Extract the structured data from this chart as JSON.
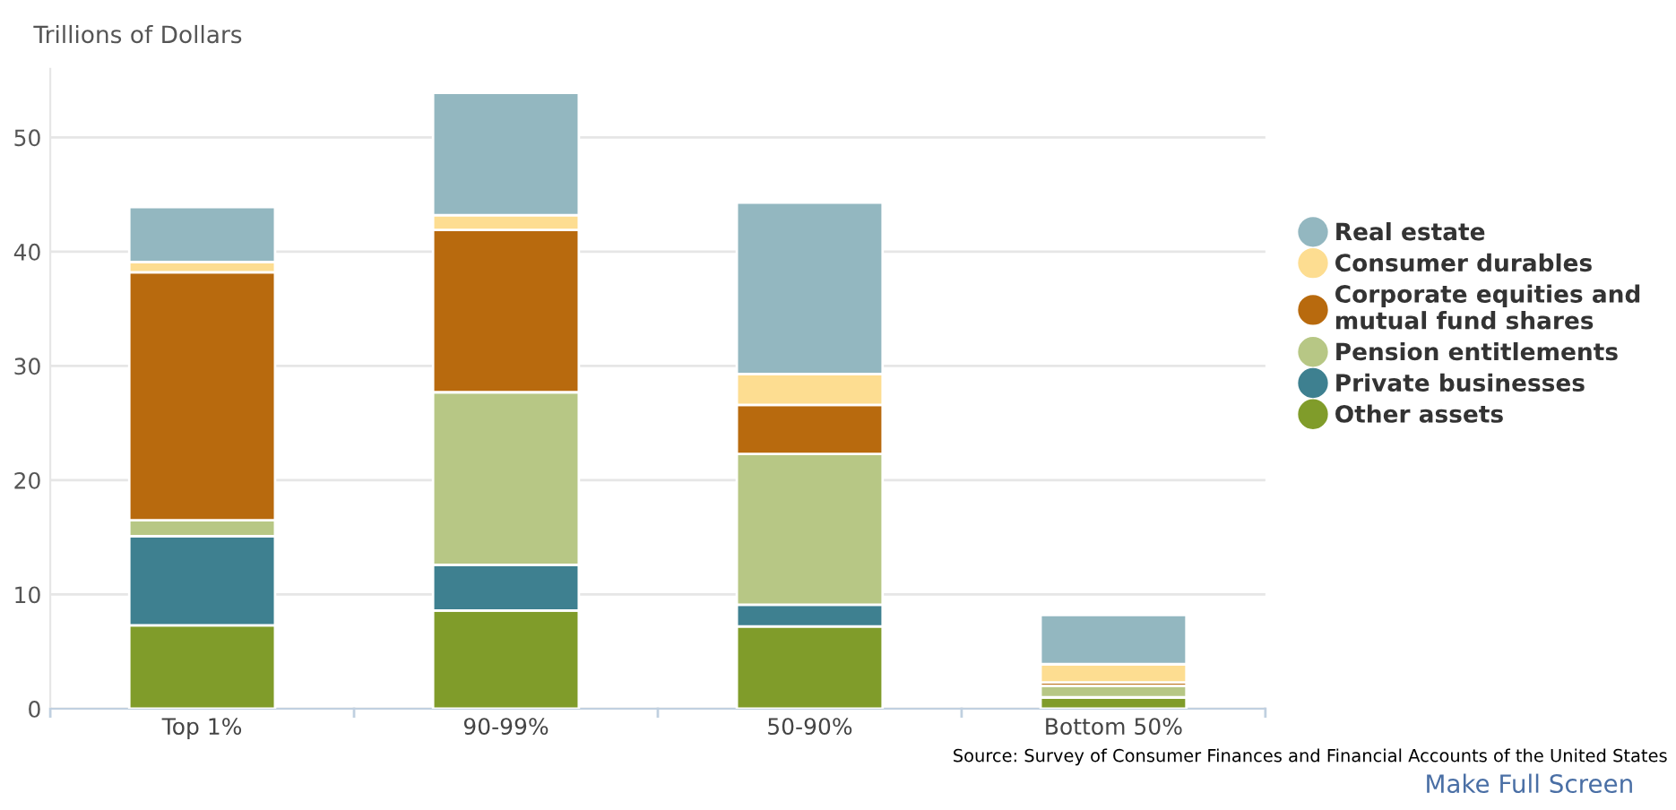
{
  "chart_data": {
    "type": "bar",
    "stacked": true,
    "ylabel": "Trillions of Dollars",
    "categories": [
      "Top 1%",
      "90-99%",
      "50-90%",
      "Bottom 50%"
    ],
    "series": [
      {
        "name": "Other assets",
        "color": "#809c2a",
        "values": [
          7.3,
          8.6,
          7.2,
          1.0
        ]
      },
      {
        "name": "Private businesses",
        "color": "#3e8090",
        "values": [
          7.8,
          4.0,
          1.9,
          null
        ]
      },
      {
        "name": "Pension entitlements",
        "color": "#b7c785",
        "values": [
          1.4,
          15.1,
          13.2,
          1.0
        ]
      },
      {
        "name": "Corporate equities and\nmutual fund shares",
        "color": "#b86a0e",
        "values": [
          21.7,
          14.2,
          4.3,
          0.3
        ]
      },
      {
        "name": "Consumer durables",
        "color": "#fddd91",
        "values": [
          0.9,
          1.3,
          2.7,
          1.6
        ]
      },
      {
        "name": "Real estate",
        "color": "#93b7c0",
        "values": [
          4.8,
          10.7,
          15.0,
          4.3
        ]
      }
    ],
    "ylim": [
      0,
      56
    ],
    "yticks": [
      0,
      10,
      20,
      30,
      40,
      50
    ],
    "grid": "y",
    "legend": "right",
    "annotations": [
      "Source: Survey of Consumer Finances and Financial Accounts of the United States",
      "Make Full Screen"
    ]
  }
}
